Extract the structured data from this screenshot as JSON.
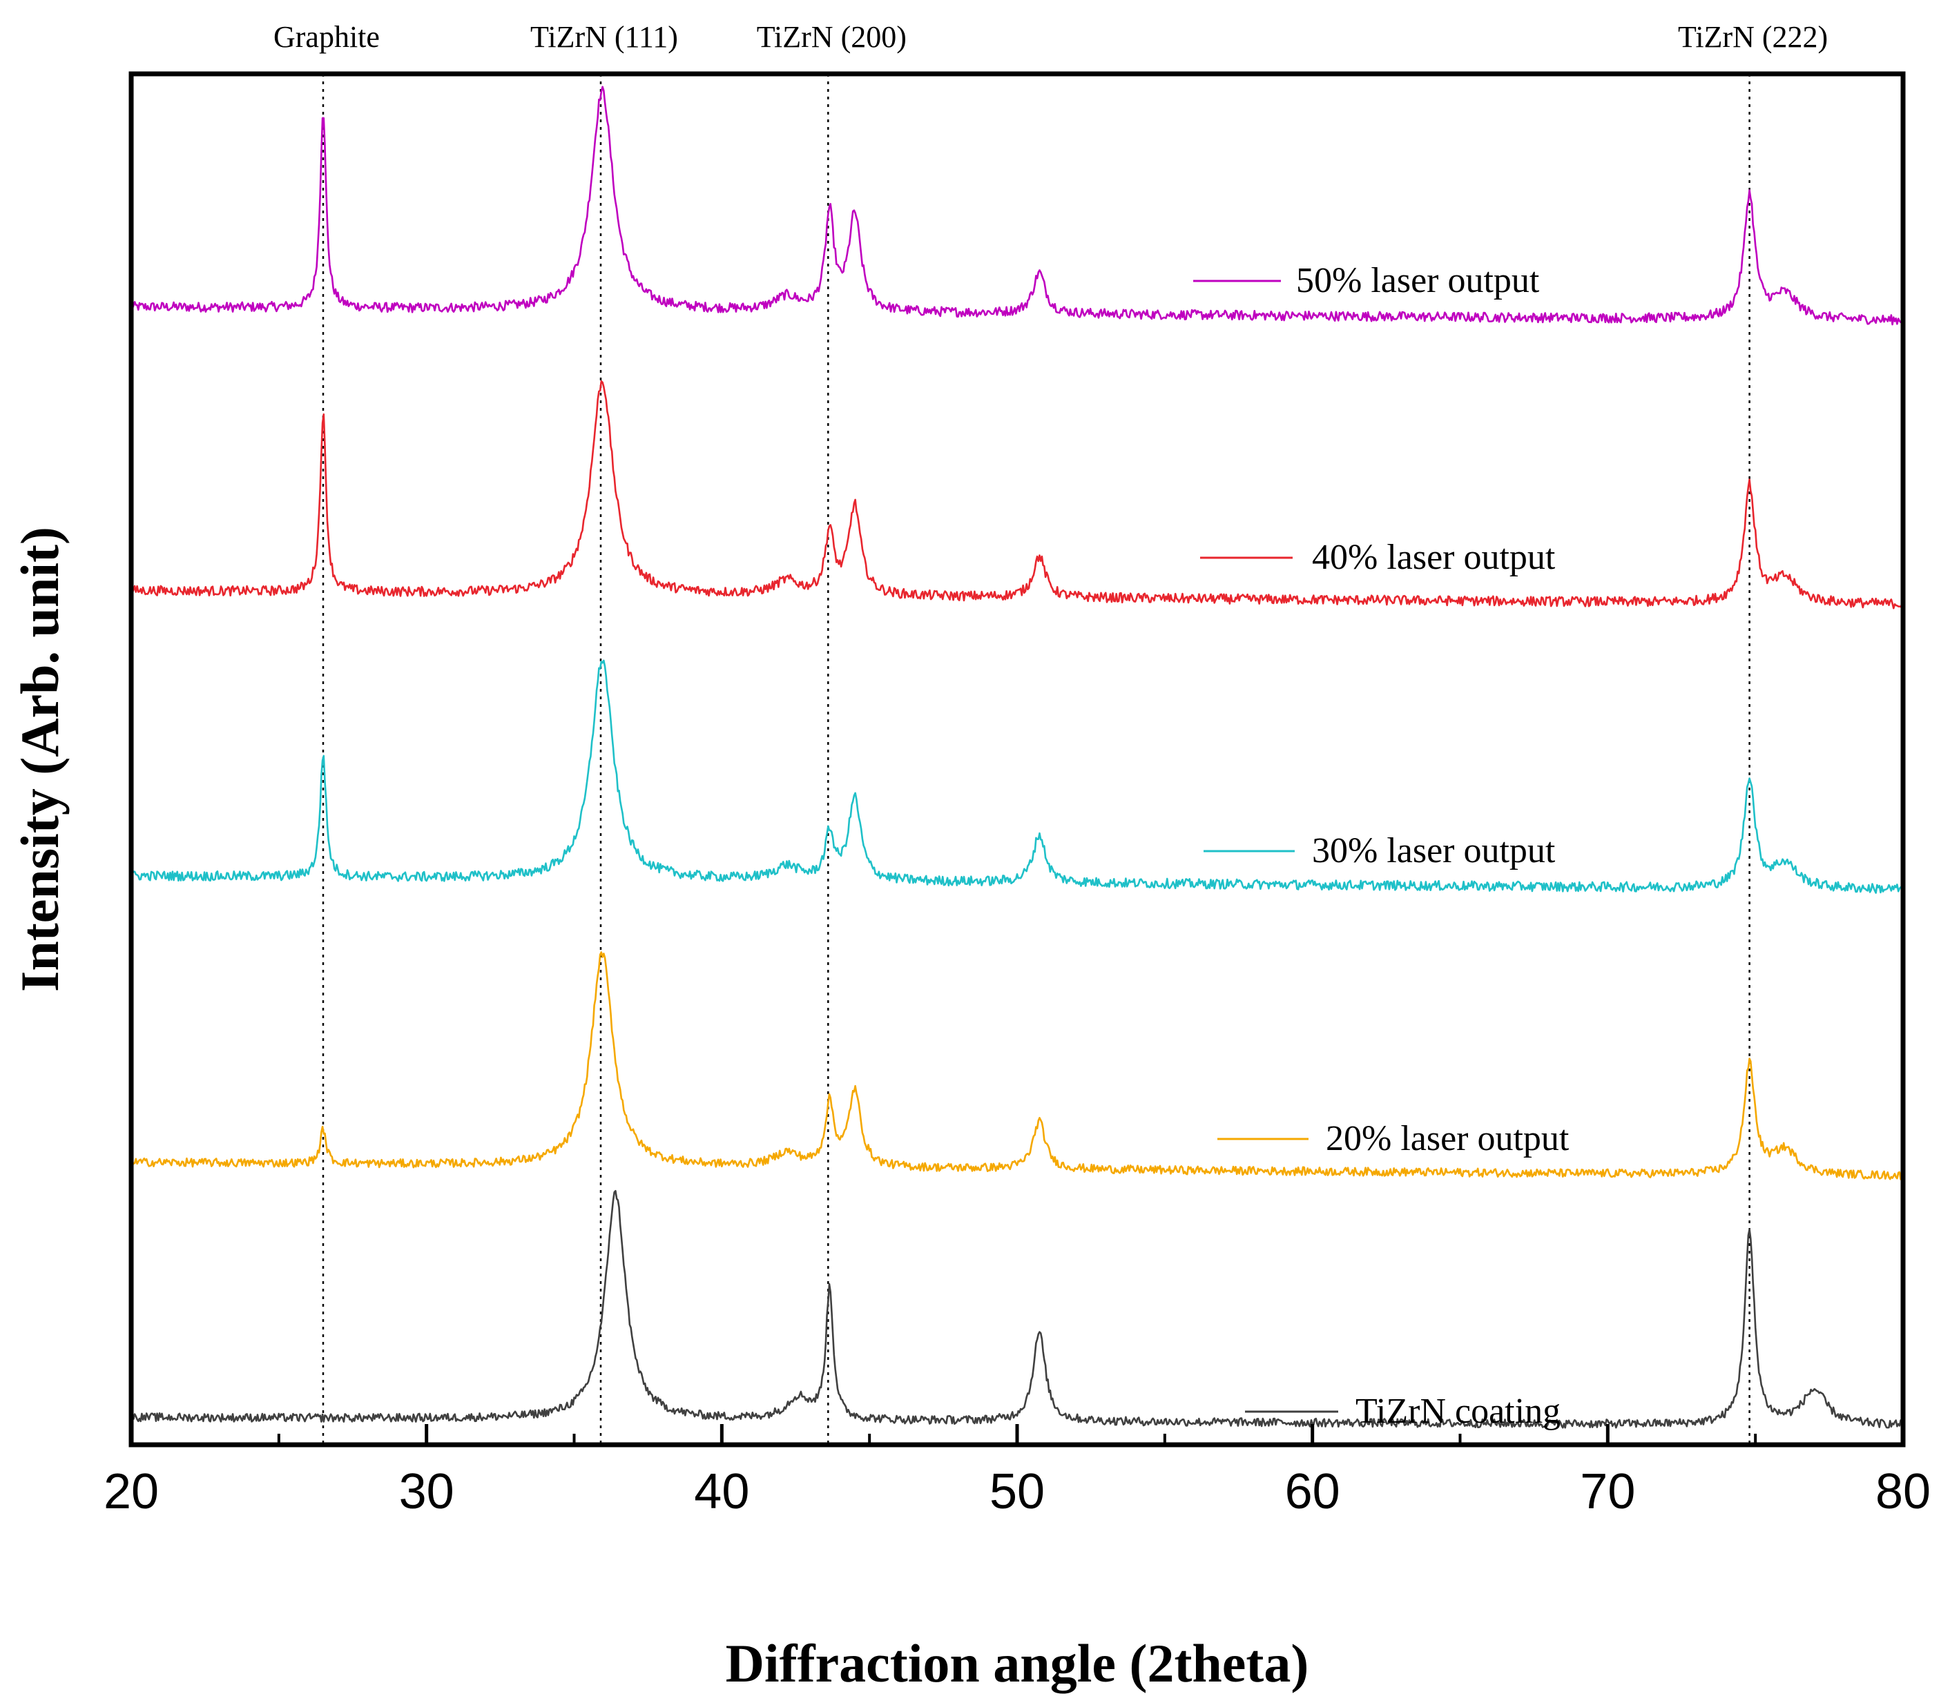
{
  "chart_data": {
    "type": "line",
    "title": "",
    "xlabel": "Diffraction angle (2theta)",
    "ylabel": "Intensity (Arb. unit)",
    "xlim": [
      20,
      80
    ],
    "ylim": [
      0,
      100
    ],
    "x_ticks": [
      "20",
      "30",
      "40",
      "50",
      "60",
      "70",
      "80"
    ],
    "x_tick_values": [
      20,
      30,
      40,
      50,
      60,
      70,
      80
    ],
    "x_minor_tick_values": [
      25,
      35,
      45,
      55,
      65,
      75
    ],
    "reference_lines": [
      {
        "label": "Graphite",
        "x": 26.5
      },
      {
        "label": "TiZrN (111)",
        "x": 35.9
      },
      {
        "label": "TiZrN (200)",
        "x": 43.6
      },
      {
        "label": "TiZrN (222)",
        "x": 74.8
      }
    ],
    "series": [
      {
        "name": "50% laser output",
        "color": "#bf00bf",
        "baseline": 83,
        "slope": -1.0,
        "noise": 0.35,
        "peaks": [
          {
            "x": 26.5,
            "h": 14.5,
            "w": 0.12
          },
          {
            "x": 35.95,
            "h": 16.0,
            "w": 0.45
          },
          {
            "x": 42.2,
            "h": 1.0,
            "w": 0.5
          },
          {
            "x": 43.65,
            "h": 7.0,
            "w": 0.18
          },
          {
            "x": 44.5,
            "h": 7.0,
            "w": 0.25
          },
          {
            "x": 50.75,
            "h": 3.0,
            "w": 0.25
          },
          {
            "x": 74.8,
            "h": 9.0,
            "w": 0.22
          },
          {
            "x": 76.0,
            "h": 1.8,
            "w": 0.5
          }
        ]
      },
      {
        "name": "40% laser output",
        "color": "#e8262e",
        "baseline": 62.3,
        "slope": -1.0,
        "noise": 0.35,
        "peaks": [
          {
            "x": 26.5,
            "h": 13.0,
            "w": 0.12
          },
          {
            "x": 35.95,
            "h": 15.5,
            "w": 0.45
          },
          {
            "x": 42.2,
            "h": 1.0,
            "w": 0.5
          },
          {
            "x": 43.65,
            "h": 4.5,
            "w": 0.18
          },
          {
            "x": 44.5,
            "h": 6.5,
            "w": 0.25
          },
          {
            "x": 50.75,
            "h": 3.0,
            "w": 0.25
          },
          {
            "x": 74.8,
            "h": 8.5,
            "w": 0.22
          },
          {
            "x": 76.0,
            "h": 1.8,
            "w": 0.5
          }
        ]
      },
      {
        "name": "30% laser output",
        "color": "#1fc0c8",
        "baseline": 41.5,
        "slope": -1.0,
        "noise": 0.35,
        "peaks": [
          {
            "x": 26.5,
            "h": 9.0,
            "w": 0.12
          },
          {
            "x": 35.95,
            "h": 16.0,
            "w": 0.45
          },
          {
            "x": 42.2,
            "h": 1.0,
            "w": 0.5
          },
          {
            "x": 43.65,
            "h": 3.3,
            "w": 0.18
          },
          {
            "x": 44.5,
            "h": 6.0,
            "w": 0.25
          },
          {
            "x": 50.75,
            "h": 3.5,
            "w": 0.25
          },
          {
            "x": 74.8,
            "h": 8.0,
            "w": 0.22
          },
          {
            "x": 76.0,
            "h": 1.8,
            "w": 0.5
          }
        ]
      },
      {
        "name": "20% laser output",
        "color": "#f5a800",
        "baseline": 20.6,
        "slope": -1.0,
        "noise": 0.3,
        "peaks": [
          {
            "x": 26.5,
            "h": 2.5,
            "w": 0.12
          },
          {
            "x": 35.95,
            "h": 15.5,
            "w": 0.45
          },
          {
            "x": 42.2,
            "h": 1.0,
            "w": 0.5
          },
          {
            "x": 43.65,
            "h": 4.5,
            "w": 0.18
          },
          {
            "x": 44.5,
            "h": 5.5,
            "w": 0.25
          },
          {
            "x": 50.75,
            "h": 3.5,
            "w": 0.25
          },
          {
            "x": 74.8,
            "h": 8.0,
            "w": 0.22
          },
          {
            "x": 76.0,
            "h": 1.8,
            "w": 0.5
          }
        ]
      },
      {
        "name": "TiZrN coating",
        "color": "#404040",
        "baseline": 2.0,
        "slope": -0.6,
        "noise": 0.3,
        "peaks": [
          {
            "x": 36.4,
            "h": 16.5,
            "w": 0.42
          },
          {
            "x": 42.6,
            "h": 1.6,
            "w": 0.5
          },
          {
            "x": 43.65,
            "h": 9.5,
            "w": 0.15
          },
          {
            "x": 50.75,
            "h": 6.5,
            "w": 0.25
          },
          {
            "x": 74.8,
            "h": 14.0,
            "w": 0.2
          },
          {
            "x": 77.0,
            "h": 2.5,
            "w": 0.5
          }
        ]
      }
    ]
  }
}
